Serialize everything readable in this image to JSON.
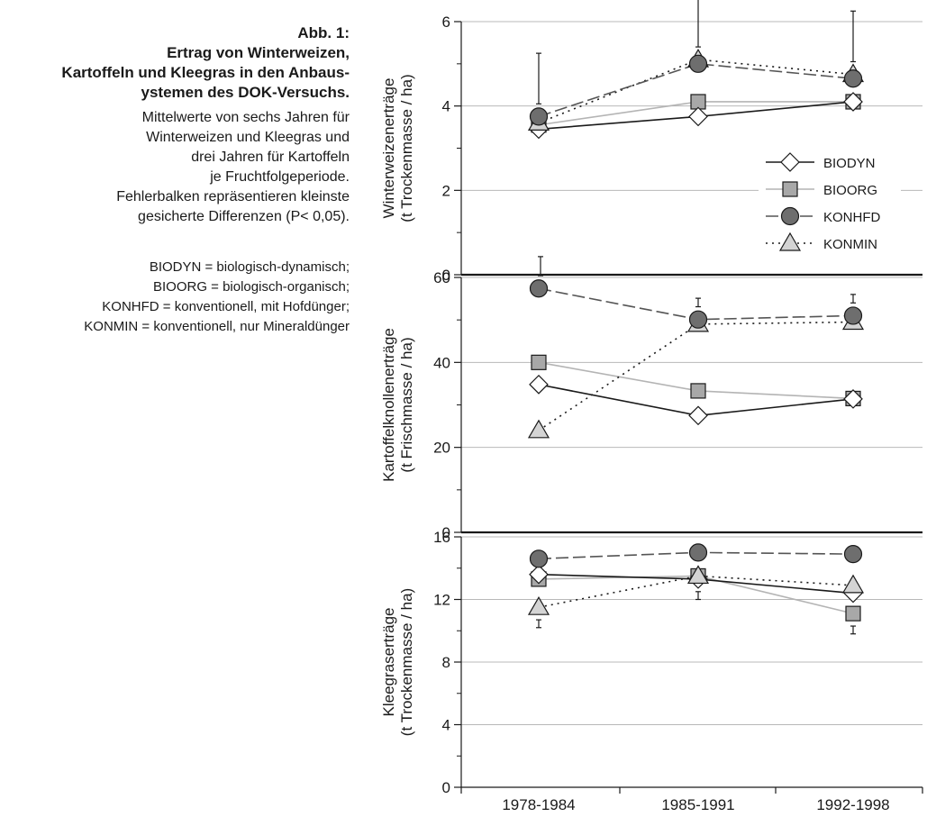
{
  "caption": {
    "title": "Abb. 1:",
    "heading_lines": [
      "Ertrag von Winterweizen,",
      "Kartoffeln und Kleegras in den Anbaus-",
      "ystemen des DOK-Versuchs."
    ],
    "body_lines": [
      "Mittelwerte von sechs Jahren für",
      "Winterweizen und Kleegras und",
      "drei Jahren für Kartoffeln",
      "je Fruchtfolgeperiode.",
      "Fehlerbalken repräsentieren kleinste",
      "gesicherte Differenzen (P< 0,05)."
    ],
    "legend_lines": [
      "BIODYN = biologisch-dynamisch;",
      "BIOORG = biologisch-organisch;",
      "KONHFD = konventionell, mit Hofdünger;",
      "KONMIN = konventionell, nur Mineraldünger"
    ]
  },
  "chart_data": {
    "type": "line",
    "categories": [
      "1978-1984",
      "1985-1991",
      "1992-1998"
    ],
    "legend_position": "right, inside top panel",
    "grid": "horizontal gridlines",
    "series_styles": [
      {
        "name": "BIODYN",
        "marker": "diamond",
        "line": "solid",
        "line_color": "#1a1a1a",
        "marker_fill": "#ffffff"
      },
      {
        "name": "BIOORG",
        "marker": "square",
        "line": "solid",
        "line_color": "#b4b4b4",
        "marker_fill": "#a8a8a8"
      },
      {
        "name": "KONHFD",
        "marker": "circle",
        "line": "dashed",
        "line_color": "#555555",
        "marker_fill": "#6e6e6e"
      },
      {
        "name": "KONMIN",
        "marker": "triangle",
        "line": "dotted",
        "line_color": "#1a1a1a",
        "marker_fill": "#d4d4d4"
      }
    ],
    "panels": [
      {
        "ylabel": [
          "Winterweizenerträge",
          "(t Trockenmasse / ha)"
        ],
        "ylim": [
          0,
          6
        ],
        "yticks": [
          0,
          2,
          4,
          6
        ],
        "series": [
          {
            "name": "BIODYN",
            "values": [
              3.45,
              3.75,
              4.1
            ]
          },
          {
            "name": "BIOORG",
            "values": [
              3.55,
              4.1,
              4.1
            ]
          },
          {
            "name": "KONHFD",
            "values": [
              3.75,
              5.0,
              4.65
            ]
          },
          {
            "name": "KONMIN",
            "values": [
              3.6,
              5.1,
              4.75
            ]
          }
        ],
        "lsd": [
          1.2,
          1.2,
          1.2
        ]
      },
      {
        "ylabel": [
          "Kartoffelknollenerträge",
          "(t Frischmasse / ha)"
        ],
        "ylim": [
          0,
          60
        ],
        "yticks": [
          0,
          20,
          40,
          60
        ],
        "series": [
          {
            "name": "BIODYN",
            "values": [
              34.8,
              27.5,
              31.4
            ]
          },
          {
            "name": "BIOORG",
            "values": [
              40.0,
              33.3,
              31.5
            ]
          },
          {
            "name": "KONHFD",
            "values": [
              57.4,
              50.1,
              51.0
            ]
          },
          {
            "name": "KONMIN",
            "values": [
              24.0,
              49.0,
              49.5
            ]
          }
        ],
        "lsd": [
          4.5,
          2.0,
          2.0
        ]
      },
      {
        "ylabel": [
          "Kleegraserträge",
          "(t Trockenmasse / ha)"
        ],
        "ylim": [
          0,
          16
        ],
        "yticks": [
          0,
          4,
          8,
          12,
          16
        ],
        "series": [
          {
            "name": "BIODYN",
            "values": [
              13.6,
              13.3,
              12.4
            ]
          },
          {
            "name": "BIOORG",
            "values": [
              13.3,
              13.5,
              11.1
            ]
          },
          {
            "name": "KONHFD",
            "values": [
              14.6,
              15.0,
              14.9
            ]
          },
          {
            "name": "KONMIN",
            "values": [
              11.5,
              13.5,
              12.9
            ]
          }
        ],
        "lsd": [
          0.5,
          0.5,
          0.5
        ]
      }
    ]
  }
}
